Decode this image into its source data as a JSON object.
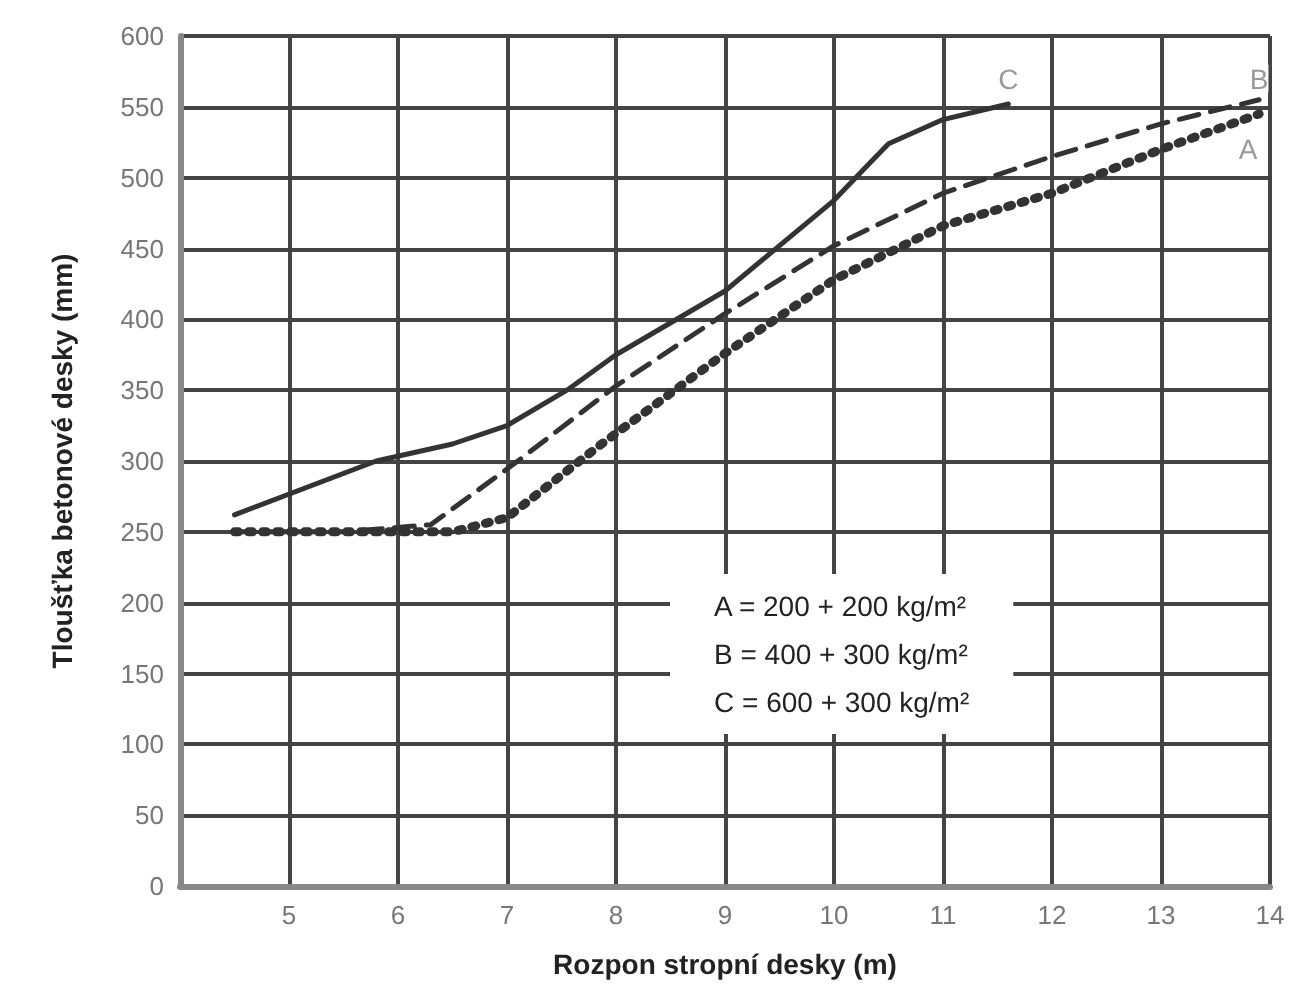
{
  "chart_data": {
    "type": "line",
    "xlabel": "Rozpon stropní desky (m)",
    "ylabel": "Tloušťka betonové desky (mm)",
    "xlim": [
      4,
      14
    ],
    "xticks": [
      5,
      6,
      7,
      8,
      9,
      10,
      11,
      12,
      13,
      14
    ],
    "ylim": [
      0,
      600
    ],
    "yticks": [
      0,
      50,
      100,
      150,
      200,
      250,
      300,
      350,
      400,
      450,
      500,
      550,
      600
    ],
    "grid": true,
    "marker": "none",
    "series": [
      {
        "color": "#333333",
        "line_style": "dotted",
        "x": [
          4.5,
          5.5,
          6.5,
          7,
          7.85,
          9,
          10,
          11,
          12,
          13,
          13.9
        ],
        "values": [
          250,
          250,
          250,
          260,
          311,
          376,
          428,
          466,
          489,
          520,
          545
        ]
      },
      {
        "color": "#333333",
        "line_style": "dashed",
        "x": [
          4.5,
          5.5,
          6.3,
          7.1,
          8,
          9,
          10,
          11,
          12,
          13,
          13.9
        ],
        "values": [
          250,
          250,
          255,
          300,
          353,
          404,
          452,
          489,
          515,
          538,
          555
        ]
      },
      {
        "color": "#333333",
        "line_style": "solid",
        "x": [
          4.5,
          5.8,
          6.5,
          7,
          7.55,
          8,
          9,
          10,
          10.3,
          10.5,
          11,
          11.6
        ],
        "values": [
          262,
          300,
          312,
          325,
          350,
          375,
          420,
          484,
          508,
          524,
          541,
          552
        ]
      }
    ],
    "annotations": [
      {
        "text": "C",
        "x": 11.6,
        "y": 570
      },
      {
        "text": "B",
        "x": 13.9,
        "y": 570
      },
      {
        "text": "A",
        "x": 13.8,
        "y": 520
      },
      "A = 200 + 200 kg/m²",
      "B = 400 + 300 kg/m²",
      "C = 600 + 300 kg/m²"
    ]
  }
}
